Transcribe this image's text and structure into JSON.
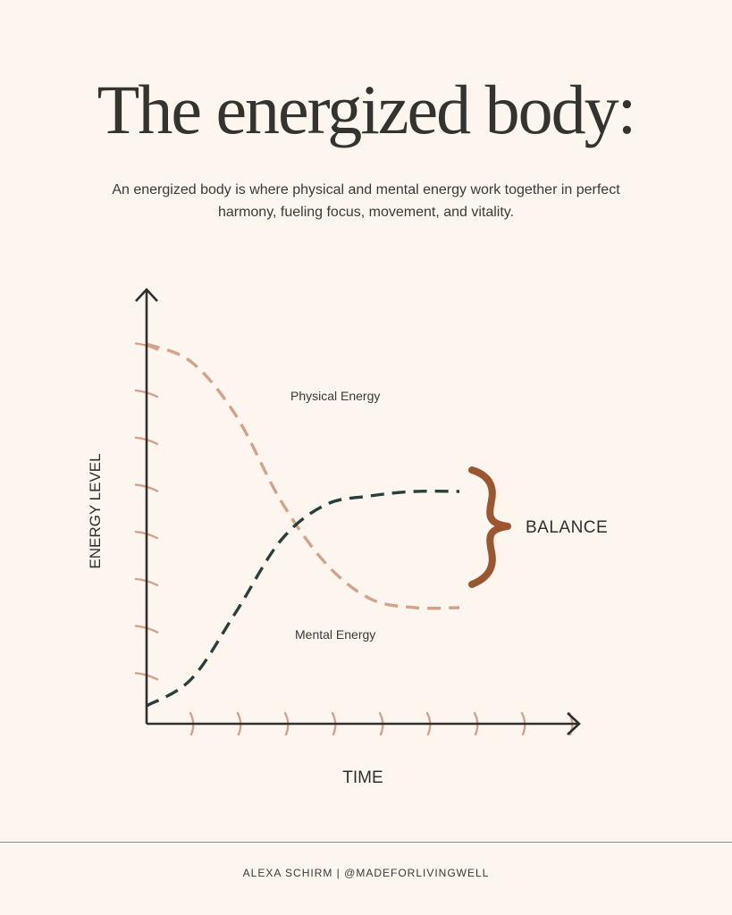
{
  "title": "The energized body:",
  "subtitle": "An energized body is where physical and mental energy work together in perfect harmony, fueling focus, movement, and vitality.",
  "footer": "ALEXA SCHIRM | @MADEFORLIVINGWELL",
  "colors": {
    "background": "#fdf6ee",
    "physical": "#d3a28a",
    "mental": "#27403c",
    "brace": "#9b5630",
    "axis": "#2f2f2d",
    "ticks": "#d3a28a"
  },
  "chart_data": {
    "type": "line",
    "xlabel": "TIME",
    "ylabel": "ENERGY LEVEL",
    "x_tick_count": 9,
    "y_tick_count": 8,
    "grid": false,
    "xlim": [
      0,
      10
    ],
    "ylim": [
      0,
      10
    ],
    "series": [
      {
        "name": "Physical Energy",
        "style": "dashed",
        "x": [
          0,
          1,
          2,
          3,
          4,
          5,
          6,
          7
        ],
        "y": [
          8.5,
          8.1,
          6.9,
          5.0,
          3.6,
          2.8,
          2.6,
          2.6
        ]
      },
      {
        "name": "Mental Energy",
        "style": "dashed",
        "x": [
          0,
          1,
          2,
          3,
          4,
          5,
          6,
          7
        ],
        "y": [
          0.4,
          1.0,
          2.5,
          4.1,
          4.9,
          5.1,
          5.2,
          5.2
        ]
      }
    ],
    "annotations": [
      {
        "text": "BALANCE",
        "type": "brace"
      }
    ]
  }
}
